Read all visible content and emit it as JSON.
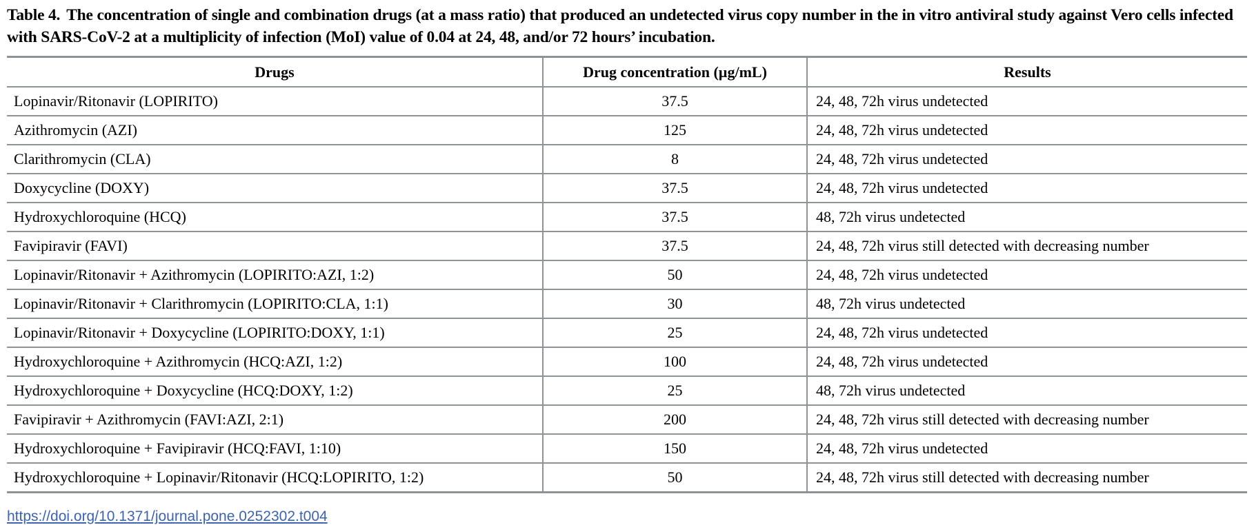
{
  "caption": {
    "label": "Table 4.",
    "text": "The concentration of single and combination drugs (at a mass ratio) that produced an undetected virus copy number in the in vitro antiviral study against Vero cells infected with SARS-CoV-2 at a multiplicity of infection (MoI) value of 0.04 at 24, 48, and/or 72 hours’ incubation."
  },
  "table": {
    "headers": [
      "Drugs",
      "Drug concentration (µg/mL)",
      "Results"
    ],
    "rows": [
      {
        "drug": "Lopinavir/Ritonavir (LOPIRITO)",
        "concentration": "37.5",
        "result": "24, 48, 72h virus undetected"
      },
      {
        "drug": "Azithromycin (AZI)",
        "concentration": "125",
        "result": "24, 48, 72h virus undetected"
      },
      {
        "drug": "Clarithromycin (CLA)",
        "concentration": "8",
        "result": "24, 48, 72h virus undetected"
      },
      {
        "drug": "Doxycycline (DOXY)",
        "concentration": "37.5",
        "result": "24, 48, 72h virus undetected"
      },
      {
        "drug": "Hydroxychloroquine (HCQ)",
        "concentration": "37.5",
        "result": "48, 72h virus undetected"
      },
      {
        "drug": "Favipiravir (FAVI)",
        "concentration": "37.5",
        "result": "24, 48, 72h virus still detected with decreasing number"
      },
      {
        "drug": "Lopinavir/Ritonavir + Azithromycin (LOPIRITO:AZI, 1:2)",
        "concentration": "50",
        "result": "24, 48, 72h virus undetected"
      },
      {
        "drug": "Lopinavir/Ritonavir + Clarithromycin (LOPIRITO:CLA, 1:1)",
        "concentration": "30",
        "result": "48, 72h virus undetected"
      },
      {
        "drug": "Lopinavir/Ritonavir + Doxycycline (LOPIRITO:DOXY, 1:1)",
        "concentration": "25",
        "result": "24, 48, 72h virus undetected"
      },
      {
        "drug": "Hydroxychloroquine + Azithromycin (HCQ:AZI, 1:2)",
        "concentration": "100",
        "result": "24, 48, 72h virus undetected"
      },
      {
        "drug": "Hydroxychloroquine + Doxycycline (HCQ:DOXY, 1:2)",
        "concentration": "25",
        "result": "48, 72h virus undetected"
      },
      {
        "drug": "Favipiravir + Azithromycin (FAVI:AZI, 2:1)",
        "concentration": "200",
        "result": "24, 48, 72h virus still detected with decreasing number"
      },
      {
        "drug": "Hydroxychloroquine + Favipiravir (HCQ:FAVI, 1:10)",
        "concentration": "150",
        "result": "24, 48, 72h virus undetected"
      },
      {
        "drug": "Hydroxychloroquine + Lopinavir/Ritonavir (HCQ:LOPIRITO, 1:2)",
        "concentration": "50",
        "result": "24, 48, 72h virus still detected with decreasing number"
      }
    ]
  },
  "footer": {
    "doi_link": "https://doi.org/10.1371/journal.pone.0252302.t004"
  },
  "colors": {
    "rule_gray": "#8e9296",
    "link_blue": "#3c63b0",
    "text": "#000000",
    "background": "#ffffff"
  }
}
